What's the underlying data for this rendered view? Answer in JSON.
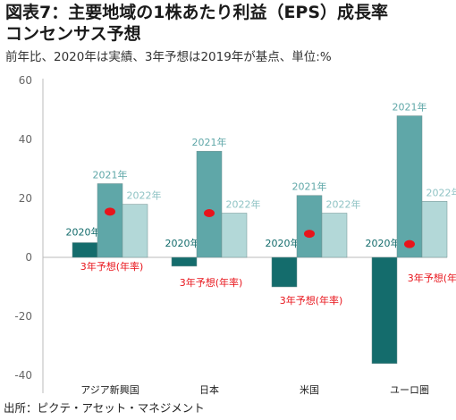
{
  "title_line1": "図表7：主要地域の1株あたり利益（EPS）成長率",
  "title_line2": "コンセンサス予想",
  "subtitle": "前年比、2020年は実績、3年予想は2019年が基点、単位:%",
  "source": "出所：ピクテ・アセット・マネジメント",
  "colors": {
    "y2020": "#146c6c",
    "y2021": "#5fa7a8",
    "y2022": "#b3d8d8",
    "projection": "#e8141b",
    "lbl2022": "#8fc3c4"
  },
  "chart_data": {
    "type": "bar",
    "categories": [
      "アジア新興国",
      "日本",
      "米国",
      "ユーロ圏"
    ],
    "series": [
      {
        "name": "2020年",
        "values": [
          5,
          -3,
          -10,
          -36
        ]
      },
      {
        "name": "2021年",
        "values": [
          25,
          36,
          21,
          48
        ]
      },
      {
        "name": "2022年",
        "values": [
          18,
          15,
          15,
          19
        ]
      }
    ],
    "projection": {
      "name": "3年予想(年率)",
      "values": [
        15.5,
        15,
        8,
        4.5
      ]
    },
    "yticks": [
      60,
      40,
      20,
      0,
      -20,
      -40
    ],
    "ylim": [
      -40,
      60
    ],
    "grid": false
  }
}
